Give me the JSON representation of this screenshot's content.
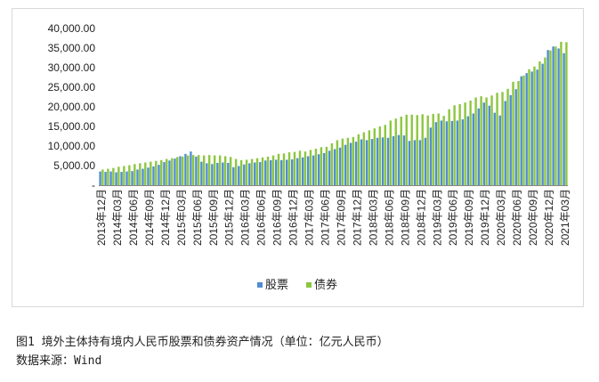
{
  "caption": {
    "title": "图1  境外主体持有境内人民币股票和债券资产情况（单位：亿元人民币）",
    "source": "数据来源：Wind"
  },
  "colors": {
    "stocks": "#4f8ed0",
    "bonds": "#8cc63f",
    "axis": "#888888",
    "text": "#222222"
  },
  "chart_data": {
    "type": "bar",
    "ylim": [
      0,
      40000
    ],
    "yticks": [
      "-",
      "5,000.00",
      "10,000.00",
      "15,000.00",
      "20,000.00",
      "25,000.00",
      "30,000.00",
      "35,000.00",
      "40,000.00"
    ],
    "legend_position": "bottom",
    "categories": [
      "2013年12月",
      "2014年01月",
      "2014年02月",
      "2014年03月",
      "2014年04月",
      "2014年05月",
      "2014年06月",
      "2014年07月",
      "2014年08月",
      "2014年09月",
      "2014年10月",
      "2014年11月",
      "2014年12月",
      "2015年01月",
      "2015年02月",
      "2015年03月",
      "2015年04月",
      "2015年05月",
      "2015年06月",
      "2015年07月",
      "2015年08月",
      "2015年09月",
      "2015年10月",
      "2015年11月",
      "2015年12月",
      "2016年01月",
      "2016年02月",
      "2016年03月",
      "2016年04月",
      "2016年05月",
      "2016年06月",
      "2016年07月",
      "2016年08月",
      "2016年09月",
      "2016年10月",
      "2016年11月",
      "2016年12月",
      "2017年01月",
      "2017年02月",
      "2017年03月",
      "2017年04月",
      "2017年05月",
      "2017年06月",
      "2017年07月",
      "2017年08月",
      "2017年09月",
      "2017年10月",
      "2017年11月",
      "2017年12月",
      "2018年01月",
      "2018年02月",
      "2018年03月",
      "2018年04月",
      "2018年05月",
      "2018年06月",
      "2018年07月",
      "2018年08月",
      "2018年09月",
      "2018年10月",
      "2018年11月",
      "2018年12月",
      "2019年01月",
      "2019年02月",
      "2019年03月",
      "2019年04月",
      "2019年05月",
      "2019年06月",
      "2019年07月",
      "2019年08月",
      "2019年09月",
      "2019年10月",
      "2019年11月",
      "2019年12月",
      "2020年01月",
      "2020年02月",
      "2020年03月",
      "2020年04月",
      "2020年05月",
      "2020年06月",
      "2020年07月",
      "2020年08月",
      "2020年09月",
      "2020年10月",
      "2020年11月",
      "2020年12月",
      "2021年01月",
      "2021年02月",
      "2021年03月"
    ],
    "series": [
      {
        "name": "股票",
        "values": [
          3500,
          3400,
          3500,
          3300,
          3400,
          3500,
          3600,
          4000,
          4200,
          4500,
          4800,
          5200,
          5900,
          6300,
          6800,
          7400,
          8000,
          8600,
          7300,
          6000,
          5600,
          5400,
          5700,
          5800,
          5700,
          4600,
          4900,
          5300,
          5600,
          5800,
          5900,
          6300,
          6400,
          6500,
          6400,
          6500,
          6600,
          6900,
          7100,
          7400,
          7600,
          7900,
          8200,
          8800,
          9200,
          9600,
          10300,
          10800,
          11100,
          11700,
          11500,
          11800,
          12100,
          12200,
          12100,
          12500,
          12800,
          12700,
          11300,
          11500,
          11500,
          12100,
          14700,
          16100,
          16500,
          16300,
          16400,
          16500,
          16800,
          17600,
          18300,
          19600,
          21100,
          20300,
          18500,
          17800,
          21500,
          23000,
          24500,
          27800,
          28600,
          29000,
          29500,
          31000,
          34500,
          35400,
          34900,
          33700
        ]
      },
      {
        "name": "债券",
        "values": [
          4000,
          4200,
          4400,
          4700,
          4900,
          5100,
          5400,
          5600,
          5800,
          6000,
          6200,
          6400,
          6700,
          6900,
          7200,
          7300,
          7600,
          7700,
          7700,
          7600,
          7700,
          7600,
          7600,
          7400,
          7200,
          6700,
          6400,
          6500,
          6700,
          6900,
          7100,
          7300,
          7600,
          8000,
          8100,
          8400,
          8500,
          8800,
          8600,
          9000,
          9300,
          9700,
          9800,
          10700,
          11500,
          11900,
          12100,
          12300,
          13000,
          13500,
          14000,
          14500,
          15000,
          15400,
          16500,
          17000,
          17500,
          18000,
          18000,
          17900,
          18100,
          17800,
          18200,
          18300,
          17700,
          19400,
          20400,
          20700,
          21100,
          21600,
          22400,
          22700,
          22400,
          22900,
          23600,
          23800,
          24600,
          26400,
          26600,
          28000,
          29600,
          30300,
          31600,
          32600,
          34400,
          35400,
          36600,
          36500
        ]
      }
    ]
  }
}
